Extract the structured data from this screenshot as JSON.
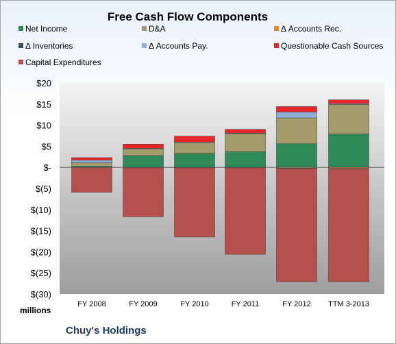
{
  "chart_data": {
    "type": "bar",
    "stacked": true,
    "title": "Free Cash Flow Components",
    "units_label": "millions",
    "company_label": "Chuy's Holdings",
    "categories": [
      "FY 2008",
      "FY 2009",
      "FY 2010",
      "FY 2011",
      "FY 2012",
      "TTM 3-2013"
    ],
    "ylim": [
      -30,
      20
    ],
    "yticks": [
      20,
      15,
      10,
      5,
      0,
      -5,
      -10,
      -15,
      -20,
      -25,
      -30
    ],
    "ytick_labels": [
      "$20",
      "$15",
      "$10",
      "$5",
      "$-",
      "$(5)",
      "$(10)",
      "$(15)",
      "$(20)",
      "$(25)",
      "$(30)"
    ],
    "grid": false,
    "legend_position": "top",
    "series": [
      {
        "name": "Net Income",
        "color": "#2e8b57",
        "values": [
          0.3,
          2.8,
          3.3,
          3.7,
          5.6,
          7.9
        ]
      },
      {
        "name": "D&A",
        "color": "#a39b6b",
        "values": [
          0.8,
          1.6,
          2.6,
          4.3,
          6.1,
          7.0
        ]
      },
      {
        "name": "Δ Accounts Rec.",
        "color": "#e08a2e",
        "values": [
          0.0,
          0.0,
          -0.1,
          -0.1,
          -0.2,
          -0.3
        ]
      },
      {
        "name": "Δ Inventories",
        "color": "#3b4f6b",
        "values": [
          0.0,
          -0.1,
          0.0,
          0.0,
          -0.1,
          -0.1
        ]
      },
      {
        "name": "Δ Accounts Pay.",
        "color": "#8fb0d6",
        "values": [
          0.6,
          0.1,
          0.1,
          0.1,
          1.4,
          0.2
        ]
      },
      {
        "name": "Questionable Cash Sources",
        "color": "#e8252b",
        "values": [
          0.6,
          1.0,
          1.4,
          0.9,
          1.3,
          0.9
        ]
      },
      {
        "name": "Capital Expenditures",
        "color": "#b5504c",
        "values": [
          -5.9,
          -11.6,
          -16.4,
          -20.5,
          -26.8,
          -26.7
        ]
      }
    ]
  }
}
